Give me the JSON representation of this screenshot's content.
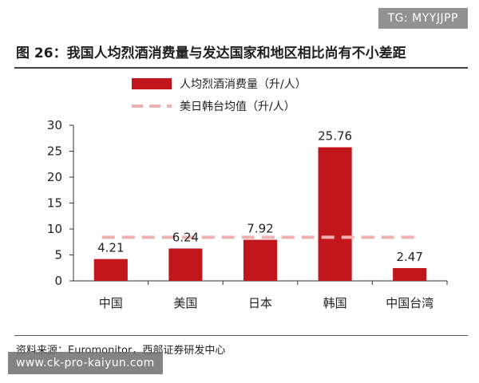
{
  "watermark_top": "TG: MYYJJPP",
  "watermark_bottom": "www.ck-pro-kaiyun.com",
  "figure_title": "图 26：我国人均烈酒消费量与发达国家和地区相比尚有不小差距",
  "source_text": "资料来源：Euromonitor，西部证券研发中心",
  "colors": {
    "bar": "#c0161c",
    "avg_line": "#f0b0b0"
  },
  "chart_data": {
    "type": "bar",
    "categories": [
      "中国",
      "美国",
      "日本",
      "韩国",
      "中国台湾"
    ],
    "values": [
      4.21,
      6.24,
      7.92,
      25.76,
      2.47
    ],
    "value_labels": [
      "4.21",
      "6.24",
      "7.92",
      "25.76",
      "2.47"
    ],
    "series": [
      {
        "name": "人均烈酒消费量（升/人）",
        "values": [
          4.21,
          6.24,
          7.92,
          25.76,
          2.47
        ]
      }
    ],
    "reference_line": {
      "name": "美日韩台均值（升/人）",
      "value": 8.4
    },
    "ylim": [
      0,
      30
    ],
    "yticks": [
      0,
      5,
      10,
      15,
      20,
      25,
      30
    ],
    "grid": false,
    "legend_position": "top-center"
  }
}
